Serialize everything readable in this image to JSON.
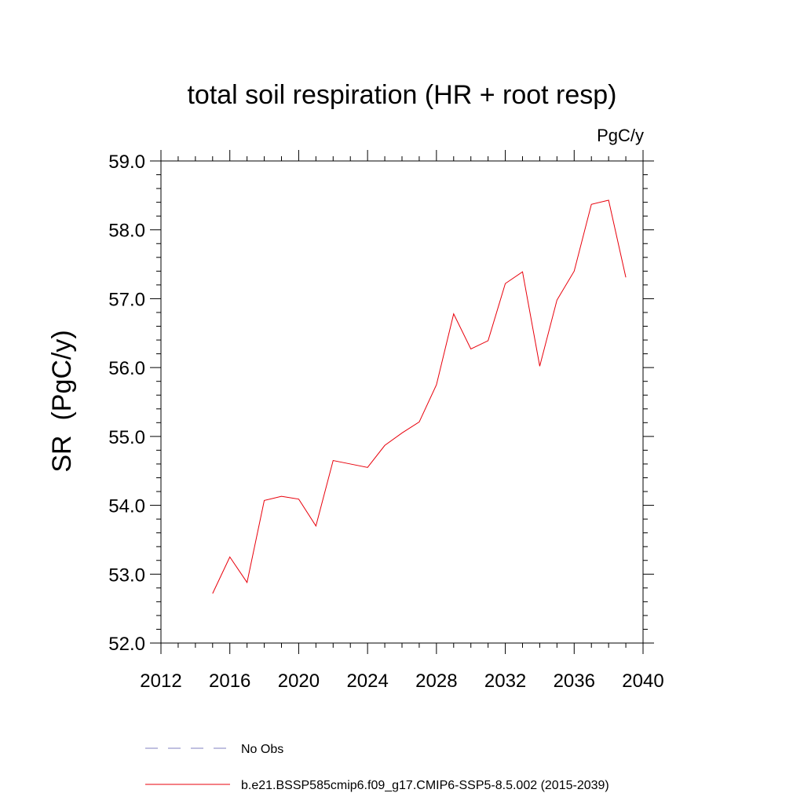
{
  "chart_data": {
    "type": "line",
    "title": "total soil respiration (HR + root resp)",
    "units_label": "PgC/y",
    "ylabel": "SR  (PgC/y)",
    "xlabel": "",
    "xlim": [
      2012,
      2040
    ],
    "ylim": [
      52.0,
      59.0
    ],
    "x_ticks": [
      2012,
      2016,
      2020,
      2024,
      2028,
      2032,
      2036,
      2040
    ],
    "x_tick_labels": [
      "2012",
      "2016",
      "2020",
      "2024",
      "2028",
      "2032",
      "2036",
      "2040"
    ],
    "y_ticks": [
      52.0,
      53.0,
      54.0,
      55.0,
      56.0,
      57.0,
      58.0,
      59.0
    ],
    "y_tick_labels": [
      "52.0",
      "53.0",
      "54.0",
      "55.0",
      "56.0",
      "57.0",
      "58.0",
      "59.0"
    ],
    "grid": false,
    "series": [
      {
        "name": "b.e21.BSSP585cmip6.f09_g17.CMIP6-SSP5-8.5.002 (2015-2039)",
        "color": "#e8000b",
        "x": [
          2015,
          2016,
          2017,
          2018,
          2019,
          2020,
          2021,
          2022,
          2023,
          2024,
          2025,
          2026,
          2027,
          2028,
          2029,
          2030,
          2031,
          2032,
          2033,
          2034,
          2035,
          2036,
          2037,
          2038,
          2039
        ],
        "y": [
          52.72,
          53.25,
          52.88,
          54.07,
          54.13,
          54.09,
          53.7,
          54.65,
          54.6,
          54.55,
          54.87,
          55.05,
          55.21,
          55.75,
          56.78,
          56.27,
          56.39,
          57.22,
          57.39,
          56.02,
          56.98,
          57.4,
          58.37,
          58.43,
          57.31
        ]
      }
    ],
    "legend": {
      "position": "bottom",
      "entries": [
        {
          "label": "No Obs",
          "color": "#8080c0",
          "style": "dashed"
        },
        {
          "label": "b.e21.BSSP585cmip6.f09_g17.CMIP6-SSP5-8.5.002 (2015-2039)",
          "color": "#e8000b",
          "style": "solid"
        }
      ]
    }
  }
}
